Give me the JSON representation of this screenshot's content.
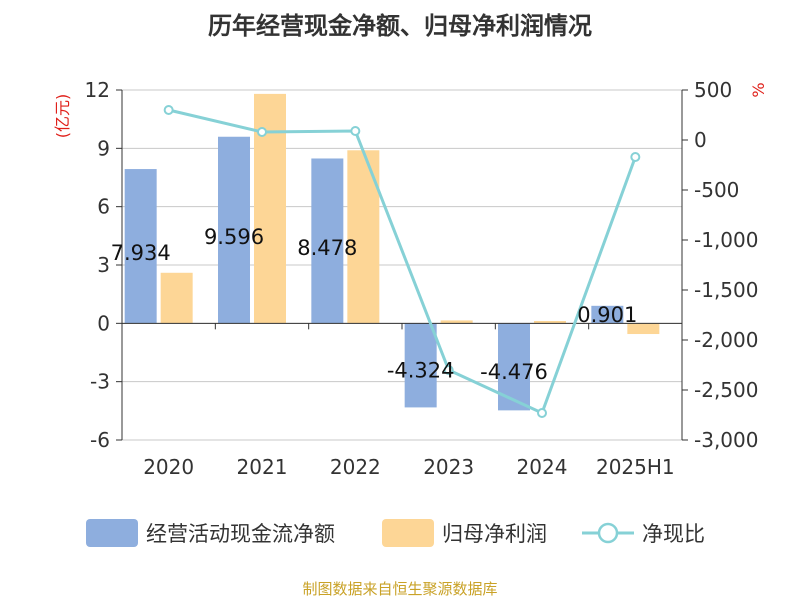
{
  "title": "历年经营现金净额、归母净利润情况",
  "footer": "制图数据来自恒生聚源数据库",
  "chart_data": {
    "type": "bar",
    "categories": [
      "2020",
      "2021",
      "2022",
      "2023",
      "2024",
      "2025H1"
    ],
    "ylabel_left": "(亿元)",
    "ylabel_right": "%",
    "ylim_left": [
      -6,
      12
    ],
    "yticks_left": [
      -6,
      -3,
      0,
      3,
      6,
      9,
      12
    ],
    "ylim_right": [
      -3000,
      500
    ],
    "yticks_right": [
      500,
      0,
      -500,
      -1000,
      -1500,
      -2000,
      -2500,
      -3000
    ],
    "yticks_right_labels": [
      "500",
      "0",
      "-500",
      "-1,000",
      "-1,500",
      "-2,000",
      "-2,500",
      "-3,000"
    ],
    "grid": true,
    "legend_position": "bottom",
    "series": [
      {
        "name": "经营活动现金流净额",
        "type": "bar",
        "axis": "left",
        "color": "#8eaede",
        "values": [
          7.934,
          9.596,
          8.478,
          -4.324,
          -4.476,
          0.901
        ],
        "labels": [
          "7.934",
          "9.596",
          "8.478",
          "-4.324",
          "-4.476",
          "0.901"
        ]
      },
      {
        "name": "归母净利润",
        "type": "bar",
        "axis": "left",
        "color": "#fdd696",
        "values": [
          2.6,
          11.8,
          8.9,
          0.15,
          0.12,
          -0.55
        ]
      },
      {
        "name": "净现比",
        "type": "line",
        "axis": "right",
        "color": "#86d1d6",
        "values": [
          300,
          80,
          90,
          -2300,
          -2730,
          -170
        ]
      }
    ]
  }
}
